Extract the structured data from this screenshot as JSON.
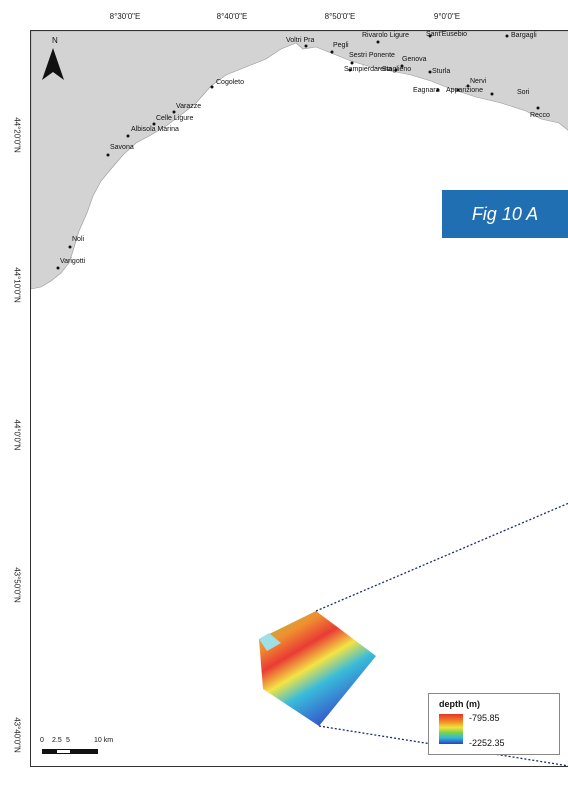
{
  "figure_label": "Fig 10 A",
  "north_label": "N",
  "longitude_labels": [
    "8°30'0\"E",
    "8°40'0\"E",
    "8°50'0\"E",
    "9°0'0\"E"
  ],
  "latitude_labels": [
    "44°20'0\"N",
    "44°10'0\"N",
    "44°0'0\"N",
    "43°50'0\"N",
    "43°40'0\"N"
  ],
  "places": [
    {
      "name": "Voltri Pra"
    },
    {
      "name": "Pegli"
    },
    {
      "name": "Rivarolo Ligure"
    },
    {
      "name": "Sant'Eusebio"
    },
    {
      "name": "Bargagli"
    },
    {
      "name": "Sestri Ponente"
    },
    {
      "name": "Genova"
    },
    {
      "name": "Sampierdarena"
    },
    {
      "name": "Staglieno"
    },
    {
      "name": "Sturla"
    },
    {
      "name": "Nervi"
    },
    {
      "name": "Eagnara"
    },
    {
      "name": "Apparizione"
    },
    {
      "name": "Sori"
    },
    {
      "name": "Recco"
    },
    {
      "name": "Cogoleto"
    },
    {
      "name": "Varazze"
    },
    {
      "name": "Celle Ligure"
    },
    {
      "name": "Albisola Marina"
    },
    {
      "name": "Savona"
    },
    {
      "name": "Noli"
    },
    {
      "name": "Varigotti"
    }
  ],
  "legend": {
    "title": "depth (m)",
    "max_label": "-795.85",
    "min_label": "-2252.35",
    "max_depth": -795.85,
    "min_depth": -2252.35
  },
  "scale_bar": {
    "labels": [
      "0",
      "2.5",
      "5",
      "10 km"
    ]
  },
  "colors": {
    "land": "#d3d3d3",
    "sea": "#ffffff",
    "badge": "#1f6fb2",
    "leader_line": "#1a2a6c"
  }
}
